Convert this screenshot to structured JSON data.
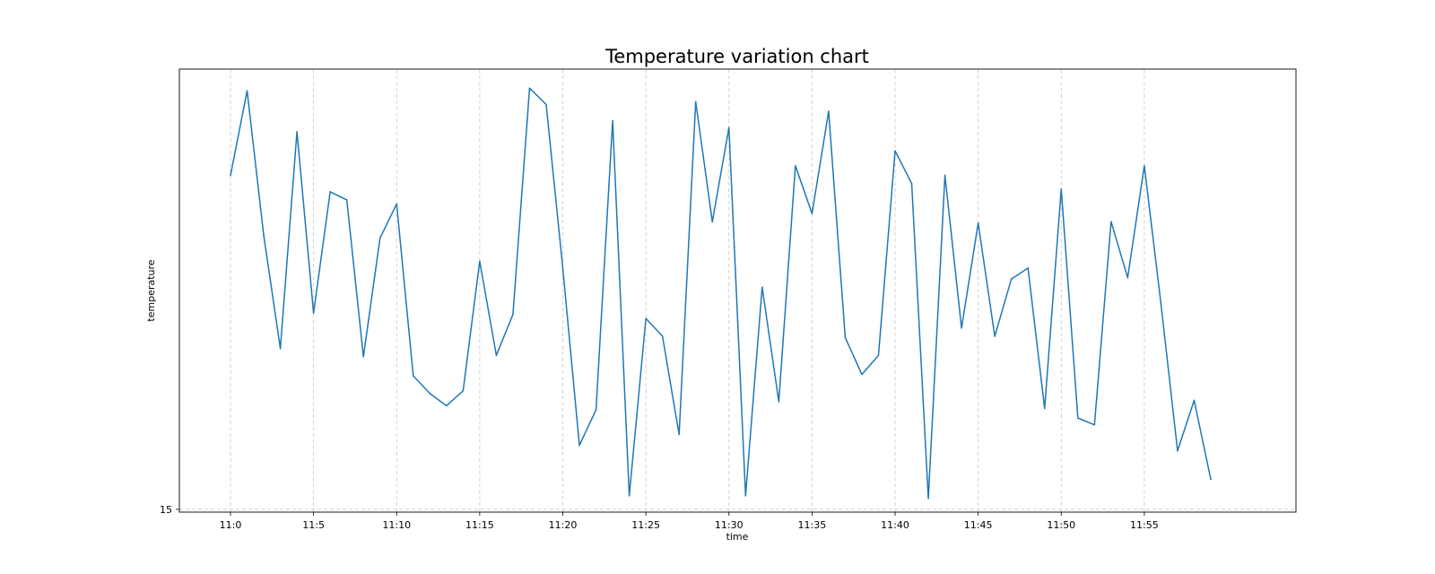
{
  "chart_data": {
    "type": "line",
    "title": "Temperature variation chart",
    "xlabel": "time",
    "ylabel": "temperature",
    "x": [
      "11:0",
      "11:1",
      "11:2",
      "11:3",
      "11:4",
      "11:5",
      "11:6",
      "11:7",
      "11:8",
      "11:9",
      "11:10",
      "11:11",
      "11:12",
      "11:13",
      "11:14",
      "11:15",
      "11:16",
      "11:17",
      "11:18",
      "11:19",
      "11:20",
      "11:21",
      "11:22",
      "11:23",
      "11:24",
      "11:25",
      "11:26",
      "11:27",
      "11:28",
      "11:29",
      "11:30",
      "11:31",
      "11:32",
      "11:33",
      "11:34",
      "11:35",
      "11:36",
      "11:37",
      "11:38",
      "11:39",
      "11:40",
      "11:41",
      "11:42",
      "11:43",
      "11:44",
      "11:45",
      "11:46",
      "11:47",
      "11:48",
      "11:49",
      "11:50",
      "11:51",
      "11:52",
      "11:53",
      "11:54",
      "11:55",
      "11:56",
      "11:57",
      "11:58",
      "11:59"
    ],
    "x_tick_labels": [
      "11:0",
      "11:5",
      "11:10",
      "11:15",
      "11:20",
      "11:25",
      "11:30",
      "11:35",
      "11:40",
      "11:45",
      "11:50",
      "11:55"
    ],
    "y_tick_labels": [
      "15"
    ],
    "series": [
      {
        "color": "#1f77b4",
        "values": [
          39.5,
          45.7,
          35.1,
          26.8,
          42.7,
          29.4,
          38.3,
          37.7,
          26.2,
          34.9,
          37.4,
          24.8,
          23.5,
          22.6,
          23.7,
          33.2,
          26.3,
          29.3,
          45.9,
          44.7,
          32.7,
          19.7,
          22.3,
          43.5,
          16.0,
          29.0,
          27.7,
          20.5,
          44.9,
          36.1,
          43.0,
          16.0,
          31.3,
          22.9,
          40.2,
          36.7,
          44.2,
          27.6,
          24.9,
          26.3,
          41.3,
          38.9,
          15.8,
          39.5,
          28.3,
          36.0,
          27.7,
          31.9,
          32.7,
          22.4,
          38.5,
          21.7,
          21.2,
          36.1,
          32.0,
          40.2,
          30.1,
          19.3,
          23.0,
          17.2
        ]
      }
    ],
    "ylim": [
      14.8,
      47.3
    ],
    "grid": {
      "x": true,
      "y": true
    },
    "legend": "none"
  }
}
